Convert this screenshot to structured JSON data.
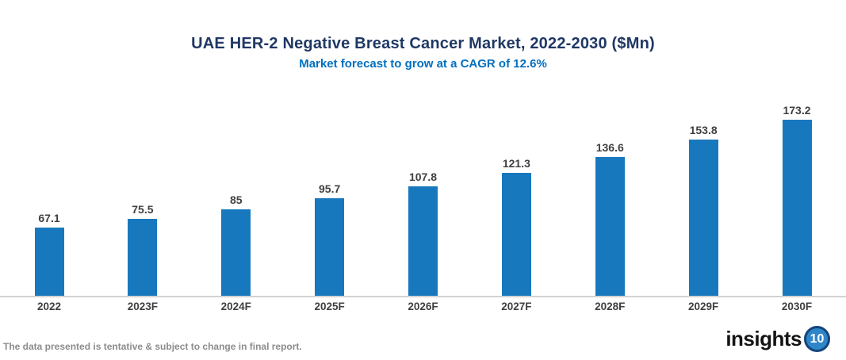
{
  "chart_data": {
    "type": "bar",
    "title": "UAE HER-2 Negative Breast Cancer Market, 2022-2030 ($Mn)",
    "subtitle": "Market forecast to grow at a CAGR of 12.6%",
    "categories": [
      "2022",
      "2023F",
      "2024F",
      "2025F",
      "2026F",
      "2027F",
      "2028F",
      "2029F",
      "2030F"
    ],
    "values": [
      67.1,
      75.5,
      85,
      95.7,
      107.8,
      121.3,
      136.6,
      153.8,
      173.2
    ],
    "value_labels": [
      "67.1",
      "75.5",
      "85",
      "95.7",
      "107.8",
      "121.3",
      "136.6",
      "153.8",
      "173.2"
    ],
    "xlabel": "",
    "ylabel": "",
    "ylim": [
      0,
      180
    ],
    "grid": false,
    "legend": "none",
    "bar_color": "#1878be",
    "data_label_color": "#404040",
    "axis_line_color": "#d2d2d2"
  },
  "colors": {
    "title": "#1f3864",
    "subtitle": "#0070c0",
    "bar": "#1878be",
    "data_label": "#404040",
    "axis_line": "#d2d2d2",
    "disclaimer": "#8c8c8c",
    "logo_text": "#141414",
    "logo_circle_fill": "#2e86c8",
    "logo_circle_ring": "#15457c"
  },
  "footer": {
    "disclaimer": "The data presented is tentative & subject to change in final report.",
    "logo_text": "insights",
    "logo_number": "10"
  }
}
